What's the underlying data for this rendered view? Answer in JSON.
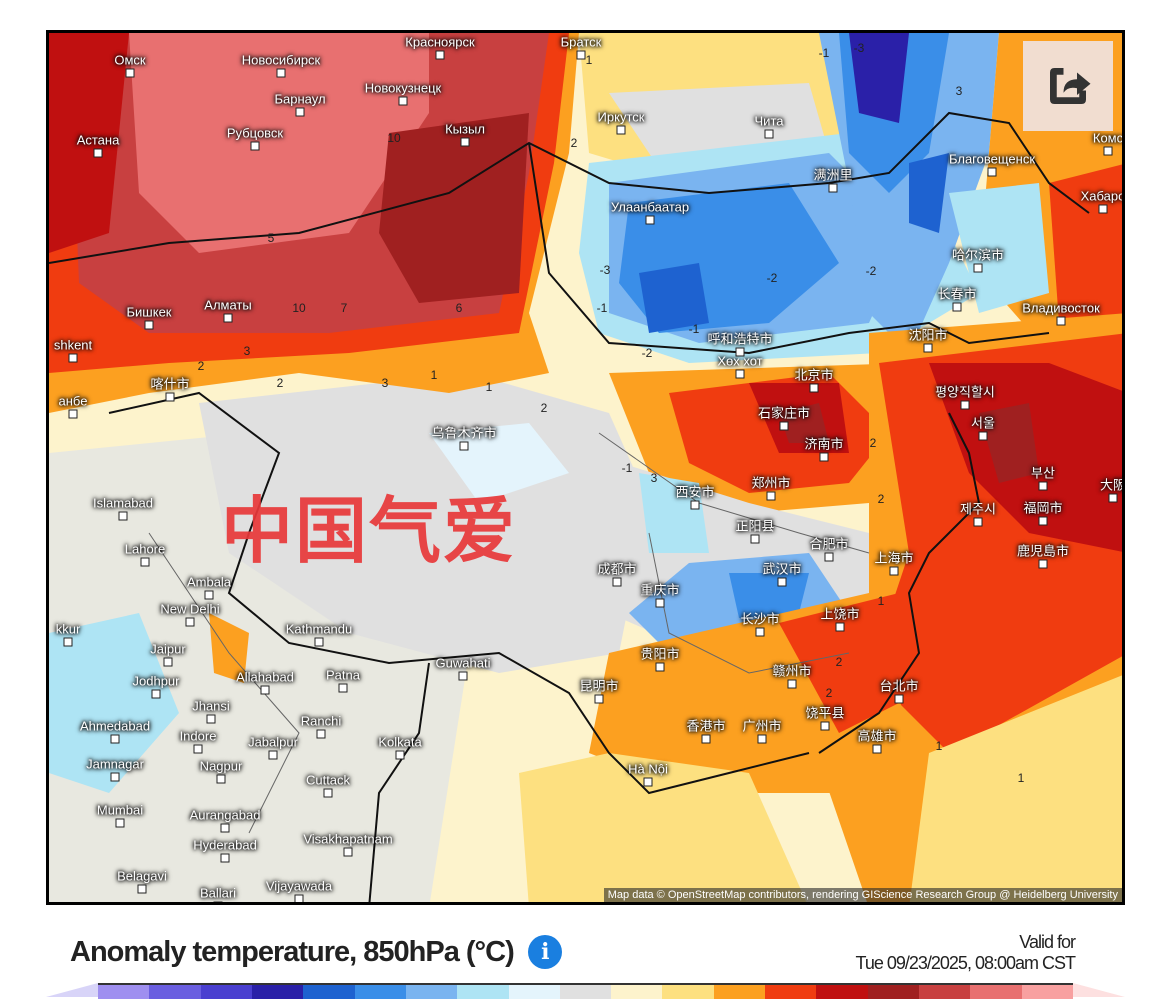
{
  "map": {
    "watermark": "中国气爱",
    "attribution": "Map data © OpenStreetMap contributors, rendering GIScience Research Group @ Heidelberg University",
    "cities": [
      "Омск",
      "Новосибирск",
      "Барнаул",
      "Новокузнецк",
      "Красноярск",
      "Братск",
      "Рубцовск",
      "Кызыл",
      "Астана",
      "Иркутск",
      "Чита",
      "Улаанбаатар",
      "Благовещенск",
      "Хабаро",
      "Комс",
      "满洲里",
      "哈尔滨市",
      "长春市",
      "Владивосток",
      "Бишкек",
      "Алматы",
      "shkent",
      "沈阳市",
      "呼和浩特市",
      "Хөх хот",
      "北京市",
      "평양직할시",
      "서울",
      "石家庄市",
      "济南市",
      "喀什市",
      "анбе",
      "乌鲁木齐市",
      "부산",
      "大阪",
      "西安市",
      "郑州市",
      "福岡市",
      "제주시",
      "Islamabad",
      "正阳县",
      "合肥市",
      "鹿児島市",
      "上海市",
      "Lahore",
      "Ambala",
      "成都市",
      "武汉市",
      "重庆市",
      "New Delhi",
      "长沙市",
      "上饶市",
      "kkur",
      "Kathmandu",
      "Jaipur",
      "贵阳市",
      "Guwahati",
      "Jodhpur",
      "Allahabad",
      "Patna",
      "赣州市",
      "台北市",
      "昆明市",
      "Jhansi",
      "Ahmedabad",
      "Ranchi",
      "Indore",
      "香港市",
      "广州市",
      "饶平县",
      "高雄市",
      "Jabalpur",
      "Kolkata",
      "Jamnagar",
      "Nagpur",
      "Hà Nội",
      "Cuttack",
      "Mumbai",
      "Aurangabad",
      "Hyderabad",
      "Visakhapatnam",
      "Belagavi",
      "Ballari",
      "Vijayawada"
    ],
    "contour_labels": [
      "-1",
      "-3",
      "2",
      "1",
      "3",
      "10",
      "5",
      "10",
      "7",
      "6",
      "3",
      "2",
      "-1",
      "-2",
      "-3",
      "-2",
      "-2",
      "-1",
      "2",
      "3",
      "1",
      "-1",
      "2",
      "1",
      "2",
      "3",
      "2",
      "1",
      "2",
      "2",
      "1",
      "1"
    ]
  },
  "share_button": {
    "icon": "share-icon"
  },
  "footer": {
    "title": "Anomaly temperature, 850hPa (°C)",
    "info_icon": "info-icon",
    "info_glyph": "i",
    "valid_label": "Valid for",
    "valid_time": "Tue 09/23/2025, 08:00am CST"
  },
  "legend": {
    "low_end_color": "#d8d4f8",
    "colors": [
      "#9f8ff0",
      "#6a5ee0",
      "#4a3fd0",
      "#2a20a8",
      "#1e62d0",
      "#3a8ee8",
      "#7ab4f0",
      "#aee4f4",
      "#e4f4fc",
      "#e0e0e0",
      "#fdf3cc",
      "#fde080",
      "#fca020",
      "#f03c10",
      "#c01010",
      "#a02020",
      "#c84040",
      "#e87070",
      "#f8a0a0"
    ],
    "high_end_color": "#fde0e0"
  }
}
